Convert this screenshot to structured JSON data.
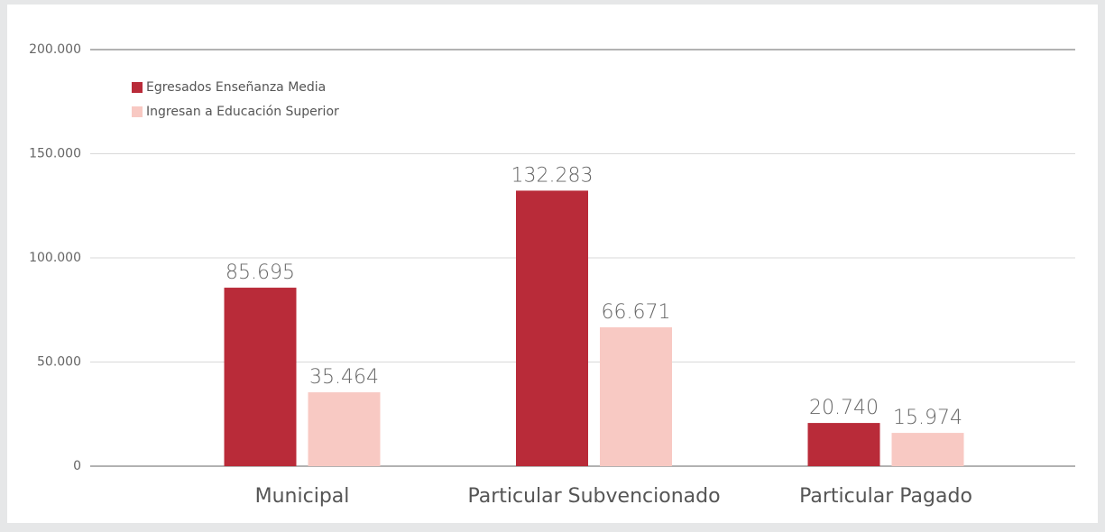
{
  "chart_data": {
    "type": "bar",
    "categories": [
      "Municipal",
      "Particular Subvencionado",
      "Particular Pagado"
    ],
    "series": [
      {
        "name": "Egresados Enseñanza Media",
        "color": "#b92b39",
        "values": [
          85695,
          132283,
          20740
        ],
        "value_labels": [
          "85.695",
          "132.283",
          "20.740"
        ]
      },
      {
        "name": "Ingresan a Educación Superior",
        "color": "#f8c9c3",
        "values": [
          35464,
          66671,
          15974
        ],
        "value_labels": [
          "35.464",
          "66.671",
          "15.974"
        ]
      }
    ],
    "ylim": [
      0,
      200000
    ],
    "yticks": [
      0,
      {
        "value": 50000,
        "label": "50.000"
      },
      {
        "value": 100000,
        "label": "100.000"
      },
      {
        "value": 150000,
        "label": "150.000"
      },
      {
        "value": 200000,
        "label": "200.000"
      }
    ],
    "grid": true,
    "legend": "top-left"
  }
}
